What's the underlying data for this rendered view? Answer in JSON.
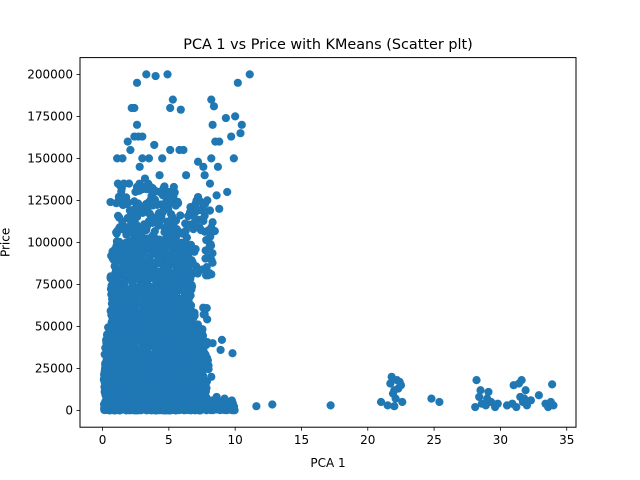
{
  "chart_data": {
    "type": "scatter",
    "title": "PCA 1 vs Price with KMeans (Scatter plt)",
    "xlabel": "PCA 1",
    "ylabel": "Price",
    "xlim": [
      -1.7,
      35.7
    ],
    "ylim": [
      -10000,
      210000
    ],
    "xticks": [
      0,
      5,
      10,
      15,
      20,
      25,
      30,
      35
    ],
    "yticks": [
      0,
      25000,
      50000,
      75000,
      100000,
      125000,
      150000,
      175000,
      200000
    ],
    "grid": false,
    "legend": "none",
    "colors": {
      "points": "#1f77b4"
    },
    "dense_regions": [
      {
        "x": [
          0.1,
          7.5
        ],
        "y": [
          0,
          50000
        ],
        "n": 1400
      },
      {
        "x": [
          0.6,
          6.8
        ],
        "y": [
          50000,
          100000
        ],
        "n": 700
      },
      {
        "x": [
          5.0,
          8.0
        ],
        "y": [
          0,
          62000
        ],
        "n": 250
      },
      {
        "x": [
          1.0,
          5.5
        ],
        "y": [
          100000,
          135000
        ],
        "n": 160
      },
      {
        "x": [
          5.5,
          8.5
        ],
        "y": [
          80000,
          125000
        ],
        "n": 90
      },
      {
        "x": [
          0.2,
          10.0
        ],
        "y": [
          0,
          6000
        ],
        "n": 350
      }
    ],
    "points": [
      [
        3.3,
        200000
      ],
      [
        4.0,
        199000
      ],
      [
        4.9,
        200000
      ],
      [
        11.1,
        200000
      ],
      [
        2.6,
        195000
      ],
      [
        10.2,
        195000
      ],
      [
        5.3,
        185000
      ],
      [
        8.2,
        185000
      ],
      [
        8.4,
        181000
      ],
      [
        2.2,
        180000
      ],
      [
        2.4,
        180000
      ],
      [
        5.1,
        180000
      ],
      [
        5.9,
        179000
      ],
      [
        10.0,
        175000
      ],
      [
        9.3,
        174000
      ],
      [
        8.3,
        170000
      ],
      [
        10.5,
        170000
      ],
      [
        2.6,
        170000
      ],
      [
        10.4,
        165000
      ],
      [
        9.7,
        163000
      ],
      [
        2.4,
        163000
      ],
      [
        2.7,
        163000
      ],
      [
        3.0,
        163000
      ],
      [
        8.5,
        160000
      ],
      [
        8.8,
        160000
      ],
      [
        1.9,
        160000
      ],
      [
        3.9,
        158000
      ],
      [
        2.1,
        155000
      ],
      [
        5.1,
        155000
      ],
      [
        5.8,
        155000
      ],
      [
        6.1,
        155000
      ],
      [
        9.9,
        150000
      ],
      [
        8.2,
        150000
      ],
      [
        1.1,
        150000
      ],
      [
        1.5,
        150000
      ],
      [
        3.0,
        150000
      ],
      [
        3.5,
        150000
      ],
      [
        4.5,
        150000
      ],
      [
        7.2,
        148000
      ],
      [
        7.6,
        145000
      ],
      [
        8.7,
        145000
      ],
      [
        2.8,
        145000
      ],
      [
        6.3,
        140000
      ],
      [
        7.7,
        140000
      ],
      [
        4.3,
        140000
      ],
      [
        3.2,
        138000
      ],
      [
        8.1,
        135000
      ],
      [
        1.6,
        135000
      ],
      [
        2.0,
        135000
      ],
      [
        9.4,
        130000
      ],
      [
        5.0,
        130000
      ],
      [
        3.9,
        130000
      ],
      [
        4.3,
        130000
      ],
      [
        0.6,
        124000
      ],
      [
        3.8,
        122000
      ],
      [
        8.6,
        128000
      ],
      [
        8.8,
        120000
      ],
      [
        8.3,
        112000
      ],
      [
        7.2,
        127000
      ],
      [
        7.9,
        125000
      ],
      [
        6.6,
        118000
      ],
      [
        8.1,
        119000
      ],
      [
        9.0,
        42000
      ],
      [
        9.8,
        34000
      ],
      [
        8.9,
        36000
      ],
      [
        7.5,
        35000
      ],
      [
        7.7,
        30000
      ],
      [
        8.3,
        40000
      ],
      [
        7.9,
        25000
      ],
      [
        8.2,
        20000
      ],
      [
        8.6,
        8000
      ],
      [
        9.2,
        7000
      ],
      [
        9.6,
        5000
      ],
      [
        8.7,
        3000
      ],
      [
        9.9,
        2000
      ],
      [
        11.6,
        2500
      ],
      [
        12.8,
        3500
      ],
      [
        17.2,
        3000
      ],
      [
        21.0,
        5000
      ],
      [
        21.5,
        3000
      ],
      [
        21.7,
        16000
      ],
      [
        21.8,
        20000
      ],
      [
        21.9,
        10000
      ],
      [
        22.0,
        2500
      ],
      [
        22.1,
        7000
      ],
      [
        22.2,
        18000
      ],
      [
        22.3,
        13000
      ],
      [
        22.4,
        17000
      ],
      [
        22.5,
        15000
      ],
      [
        22.6,
        5000
      ],
      [
        22.0,
        12000
      ],
      [
        24.8,
        7000
      ],
      [
        25.4,
        5000
      ],
      [
        28.1,
        2000
      ],
      [
        28.2,
        18000
      ],
      [
        28.4,
        8000
      ],
      [
        28.6,
        4000
      ],
      [
        28.9,
        3000
      ],
      [
        29.1,
        11000
      ],
      [
        29.3,
        5000
      ],
      [
        29.6,
        2000
      ],
      [
        29.8,
        4000
      ],
      [
        30.9,
        4000
      ],
      [
        31.0,
        15000
      ],
      [
        31.2,
        2000
      ],
      [
        31.4,
        16000
      ],
      [
        31.5,
        8000
      ],
      [
        31.6,
        18000
      ],
      [
        31.7,
        5000
      ],
      [
        31.8,
        7000
      ],
      [
        32.0,
        3000
      ],
      [
        32.3,
        6000
      ],
      [
        32.9,
        9000
      ],
      [
        33.4,
        4000
      ],
      [
        33.6,
        2000
      ],
      [
        33.8,
        5000
      ],
      [
        33.9,
        15500
      ],
      [
        34.0,
        3000
      ],
      [
        30.5,
        3000
      ],
      [
        29.0,
        7000
      ],
      [
        31.9,
        12000
      ],
      [
        28.5,
        12000
      ]
    ]
  }
}
